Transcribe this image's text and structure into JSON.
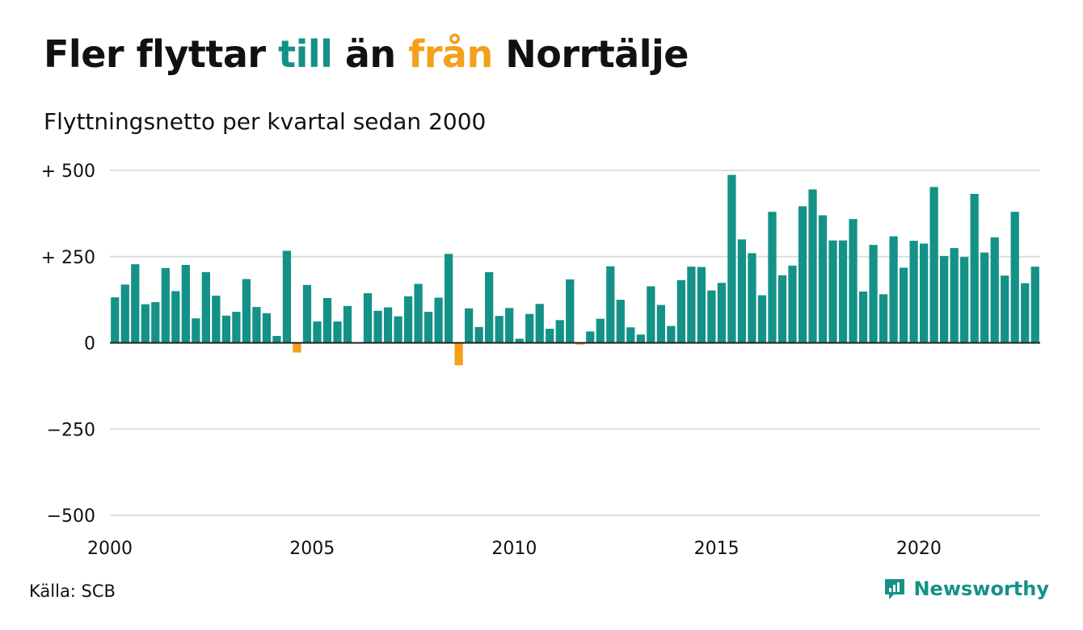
{
  "title": {
    "part1": "Fler flyttar ",
    "highlight_to": "till",
    "part2": " än ",
    "highlight_from": "från",
    "part3": " Norrtälje"
  },
  "subtitle": "Flyttningsnetto per kvartal sedan 2000",
  "source": "Källa: SCB",
  "brand": {
    "name": "Newsworthy",
    "icon": "newsworthy-logo-icon"
  },
  "colors": {
    "positive": "#149287",
    "negative": "#f3a01b",
    "grid": "#dedede",
    "axis": "#222222"
  },
  "chart_data": {
    "type": "bar",
    "x_start": "2000 Q1",
    "ylim": [
      -500,
      500
    ],
    "yticks": [
      500,
      250,
      0,
      -250,
      -500
    ],
    "ytick_labels": [
      "+ 500",
      "+ 250",
      "0",
      "−250",
      "−500"
    ],
    "xticks": [
      "2000",
      "2005",
      "2010",
      "2015",
      "2020"
    ],
    "grid": true,
    "legend": "none",
    "values": [
      132,
      169,
      228,
      112,
      118,
      217,
      150,
      226,
      71,
      205,
      137,
      79,
      90,
      185,
      104,
      86,
      20,
      267,
      -28,
      168,
      62,
      130,
      62,
      107,
      0,
      144,
      93,
      103,
      77,
      135,
      171,
      90,
      131,
      258,
      -65,
      100,
      46,
      205,
      78,
      101,
      12,
      84,
      113,
      41,
      66,
      184,
      -5,
      33,
      70,
      222,
      125,
      45,
      24,
      164,
      110,
      49,
      182,
      221,
      220,
      152,
      174,
      487,
      300,
      260,
      138,
      380,
      196,
      224,
      396,
      445,
      370,
      297,
      297,
      359,
      149,
      284,
      141,
      309,
      218,
      296,
      288,
      452,
      252,
      275,
      249,
      432,
      262,
      306,
      195,
      380,
      173,
      221
    ]
  }
}
